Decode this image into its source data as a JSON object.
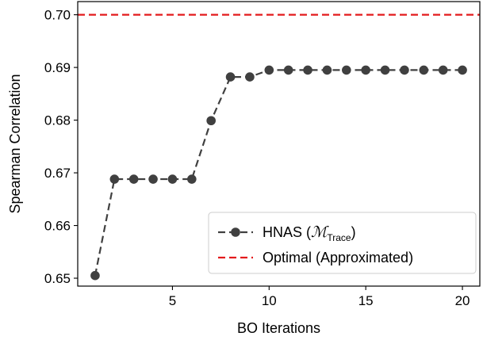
{
  "chart_data": {
    "type": "line",
    "xlabel": "BO Iterations",
    "ylabel": "Spearman Correlation",
    "xlim": [
      0.1,
      20.9
    ],
    "ylim": [
      0.6485,
      0.7025
    ],
    "xticks": [
      5,
      10,
      15,
      20
    ],
    "yticks": [
      0.65,
      0.66,
      0.67,
      0.68,
      0.69,
      0.7
    ],
    "ytick_labels": [
      "0.65",
      "0.66",
      "0.67",
      "0.68",
      "0.69",
      "0.70"
    ],
    "grid": false,
    "legend_position": "lower-right",
    "series": [
      {
        "name": "HNAS",
        "name_math": "ℳ",
        "name_math_sub": "Trace",
        "color": "#404040",
        "style": "dashed",
        "marker": "circle",
        "x": [
          1,
          2,
          3,
          4,
          5,
          6,
          7,
          8,
          9,
          10,
          11,
          12,
          13,
          14,
          15,
          16,
          17,
          18,
          19,
          20
        ],
        "y": [
          0.6505,
          0.6688,
          0.6688,
          0.6688,
          0.6688,
          0.6688,
          0.6799,
          0.6882,
          0.6882,
          0.6895,
          0.6895,
          0.6895,
          0.6895,
          0.6895,
          0.6895,
          0.6895,
          0.6895,
          0.6895,
          0.6895,
          0.6895
        ]
      }
    ],
    "reference_lines": [
      {
        "name": "Optimal (Approximated)",
        "y": 0.7,
        "color": "#e31a1c",
        "style": "dashed"
      }
    ]
  }
}
